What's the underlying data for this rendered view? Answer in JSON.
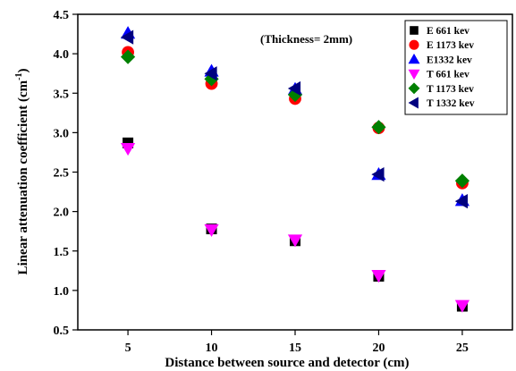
{
  "chart_data": {
    "type": "scatter",
    "xlabel": "Distance between source and detector (cm)",
    "ylabel": "Linear attenuation coefficient (cm",
    "ylabel_sup": "-1",
    "ylabel_close": ")",
    "annotation": "(Thickness= 2mm)",
    "xlim": [
      2,
      28
    ],
    "ylim": [
      0.5,
      4.5
    ],
    "x_ticks": [
      5,
      10,
      15,
      20,
      25
    ],
    "x_tick_labels": [
      "5",
      "10",
      "15",
      "20",
      "25"
    ],
    "y_ticks": [
      0.5,
      1.0,
      1.5,
      2.0,
      2.5,
      3.0,
      3.5,
      4.0,
      4.5
    ],
    "y_tick_labels": [
      "0.5",
      "1.0",
      "1.5",
      "2.0",
      "2.5",
      "3.0",
      "3.5",
      "4.0",
      "4.5"
    ],
    "grid": false,
    "legend_position": "top-right",
    "x": [
      5,
      10,
      15,
      20,
      25
    ],
    "series": [
      {
        "name": "E 661 kev",
        "marker": "square",
        "color": "#000000",
        "values": [
          2.87,
          1.78,
          1.63,
          1.18,
          0.8
        ]
      },
      {
        "name": "E 1173 kev",
        "marker": "circle",
        "color": "#ff0000",
        "values": [
          4.02,
          3.62,
          3.43,
          3.06,
          2.36
        ]
      },
      {
        "name": "E1332 kev",
        "marker": "triangle-up",
        "color": "#0000ff",
        "values": [
          4.26,
          3.78,
          3.55,
          2.47,
          2.14
        ]
      },
      {
        "name": "T 661 kev",
        "marker": "triangle-down",
        "color": "#ff00ff",
        "values": [
          2.8,
          1.77,
          1.64,
          1.19,
          0.81
        ]
      },
      {
        "name": "T 1173 kev",
        "marker": "diamond",
        "color": "#008000",
        "values": [
          3.96,
          3.68,
          3.48,
          3.07,
          2.39
        ]
      },
      {
        "name": "T 1332 kev",
        "marker": "triangle-left",
        "color": "#000080",
        "values": [
          4.21,
          3.75,
          3.56,
          2.47,
          2.13
        ]
      }
    ]
  }
}
